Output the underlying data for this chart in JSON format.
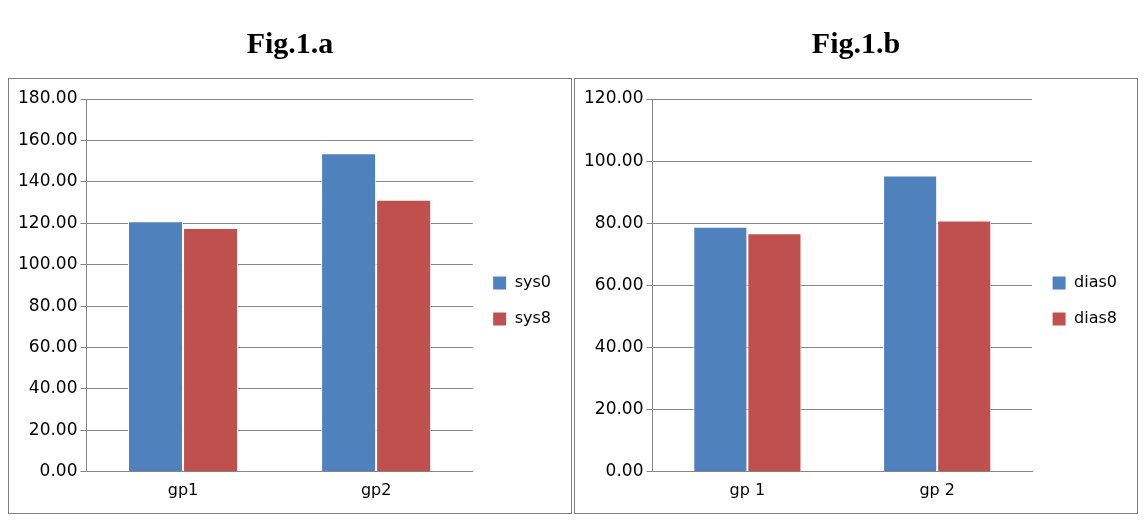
{
  "chart_data": [
    {
      "type": "bar",
      "title": "Fig.1.a",
      "categories": [
        "gp1",
        "gp2"
      ],
      "series": [
        {
          "name": "sys0",
          "color": "#4f81bd",
          "values": [
            121,
            153.8
          ]
        },
        {
          "name": "sys8",
          "color": "#c0504d",
          "values": [
            117.7,
            131.4
          ]
        }
      ],
      "ylim": [
        0,
        180
      ],
      "yticks": [
        {
          "value": 0,
          "label": "0.00"
        },
        {
          "value": 20,
          "label": "20.00"
        },
        {
          "value": 40,
          "label": "40.00"
        },
        {
          "value": 60,
          "label": "60.00"
        },
        {
          "value": 80,
          "label": "80.00"
        },
        {
          "value": 100,
          "label": "100.00"
        },
        {
          "value": 120,
          "label": "120.00"
        },
        {
          "value": 140,
          "label": "140.00"
        },
        {
          "value": 160,
          "label": "160.00"
        },
        {
          "value": 180,
          "label": "180.00"
        }
      ],
      "grid": "y",
      "legend": "right"
    },
    {
      "type": "bar",
      "title": "Fig.1.b",
      "categories": [
        "gp 1",
        "gp 2"
      ],
      "series": [
        {
          "name": "dias0",
          "color": "#4f81bd",
          "values": [
            78.9,
            95.4
          ]
        },
        {
          "name": "dias8",
          "color": "#c0504d",
          "values": [
            76.8,
            80.9
          ]
        }
      ],
      "ylim": [
        0,
        120
      ],
      "yticks": [
        {
          "value": 0,
          "label": "0.00"
        },
        {
          "value": 20,
          "label": "20.00"
        },
        {
          "value": 40,
          "label": "40.00"
        },
        {
          "value": 60,
          "label": "60.00"
        },
        {
          "value": 80,
          "label": "80.00"
        },
        {
          "value": 100,
          "label": "100.00"
        },
        {
          "value": 120,
          "label": "120.00"
        }
      ],
      "grid": "y",
      "legend": "right"
    }
  ]
}
